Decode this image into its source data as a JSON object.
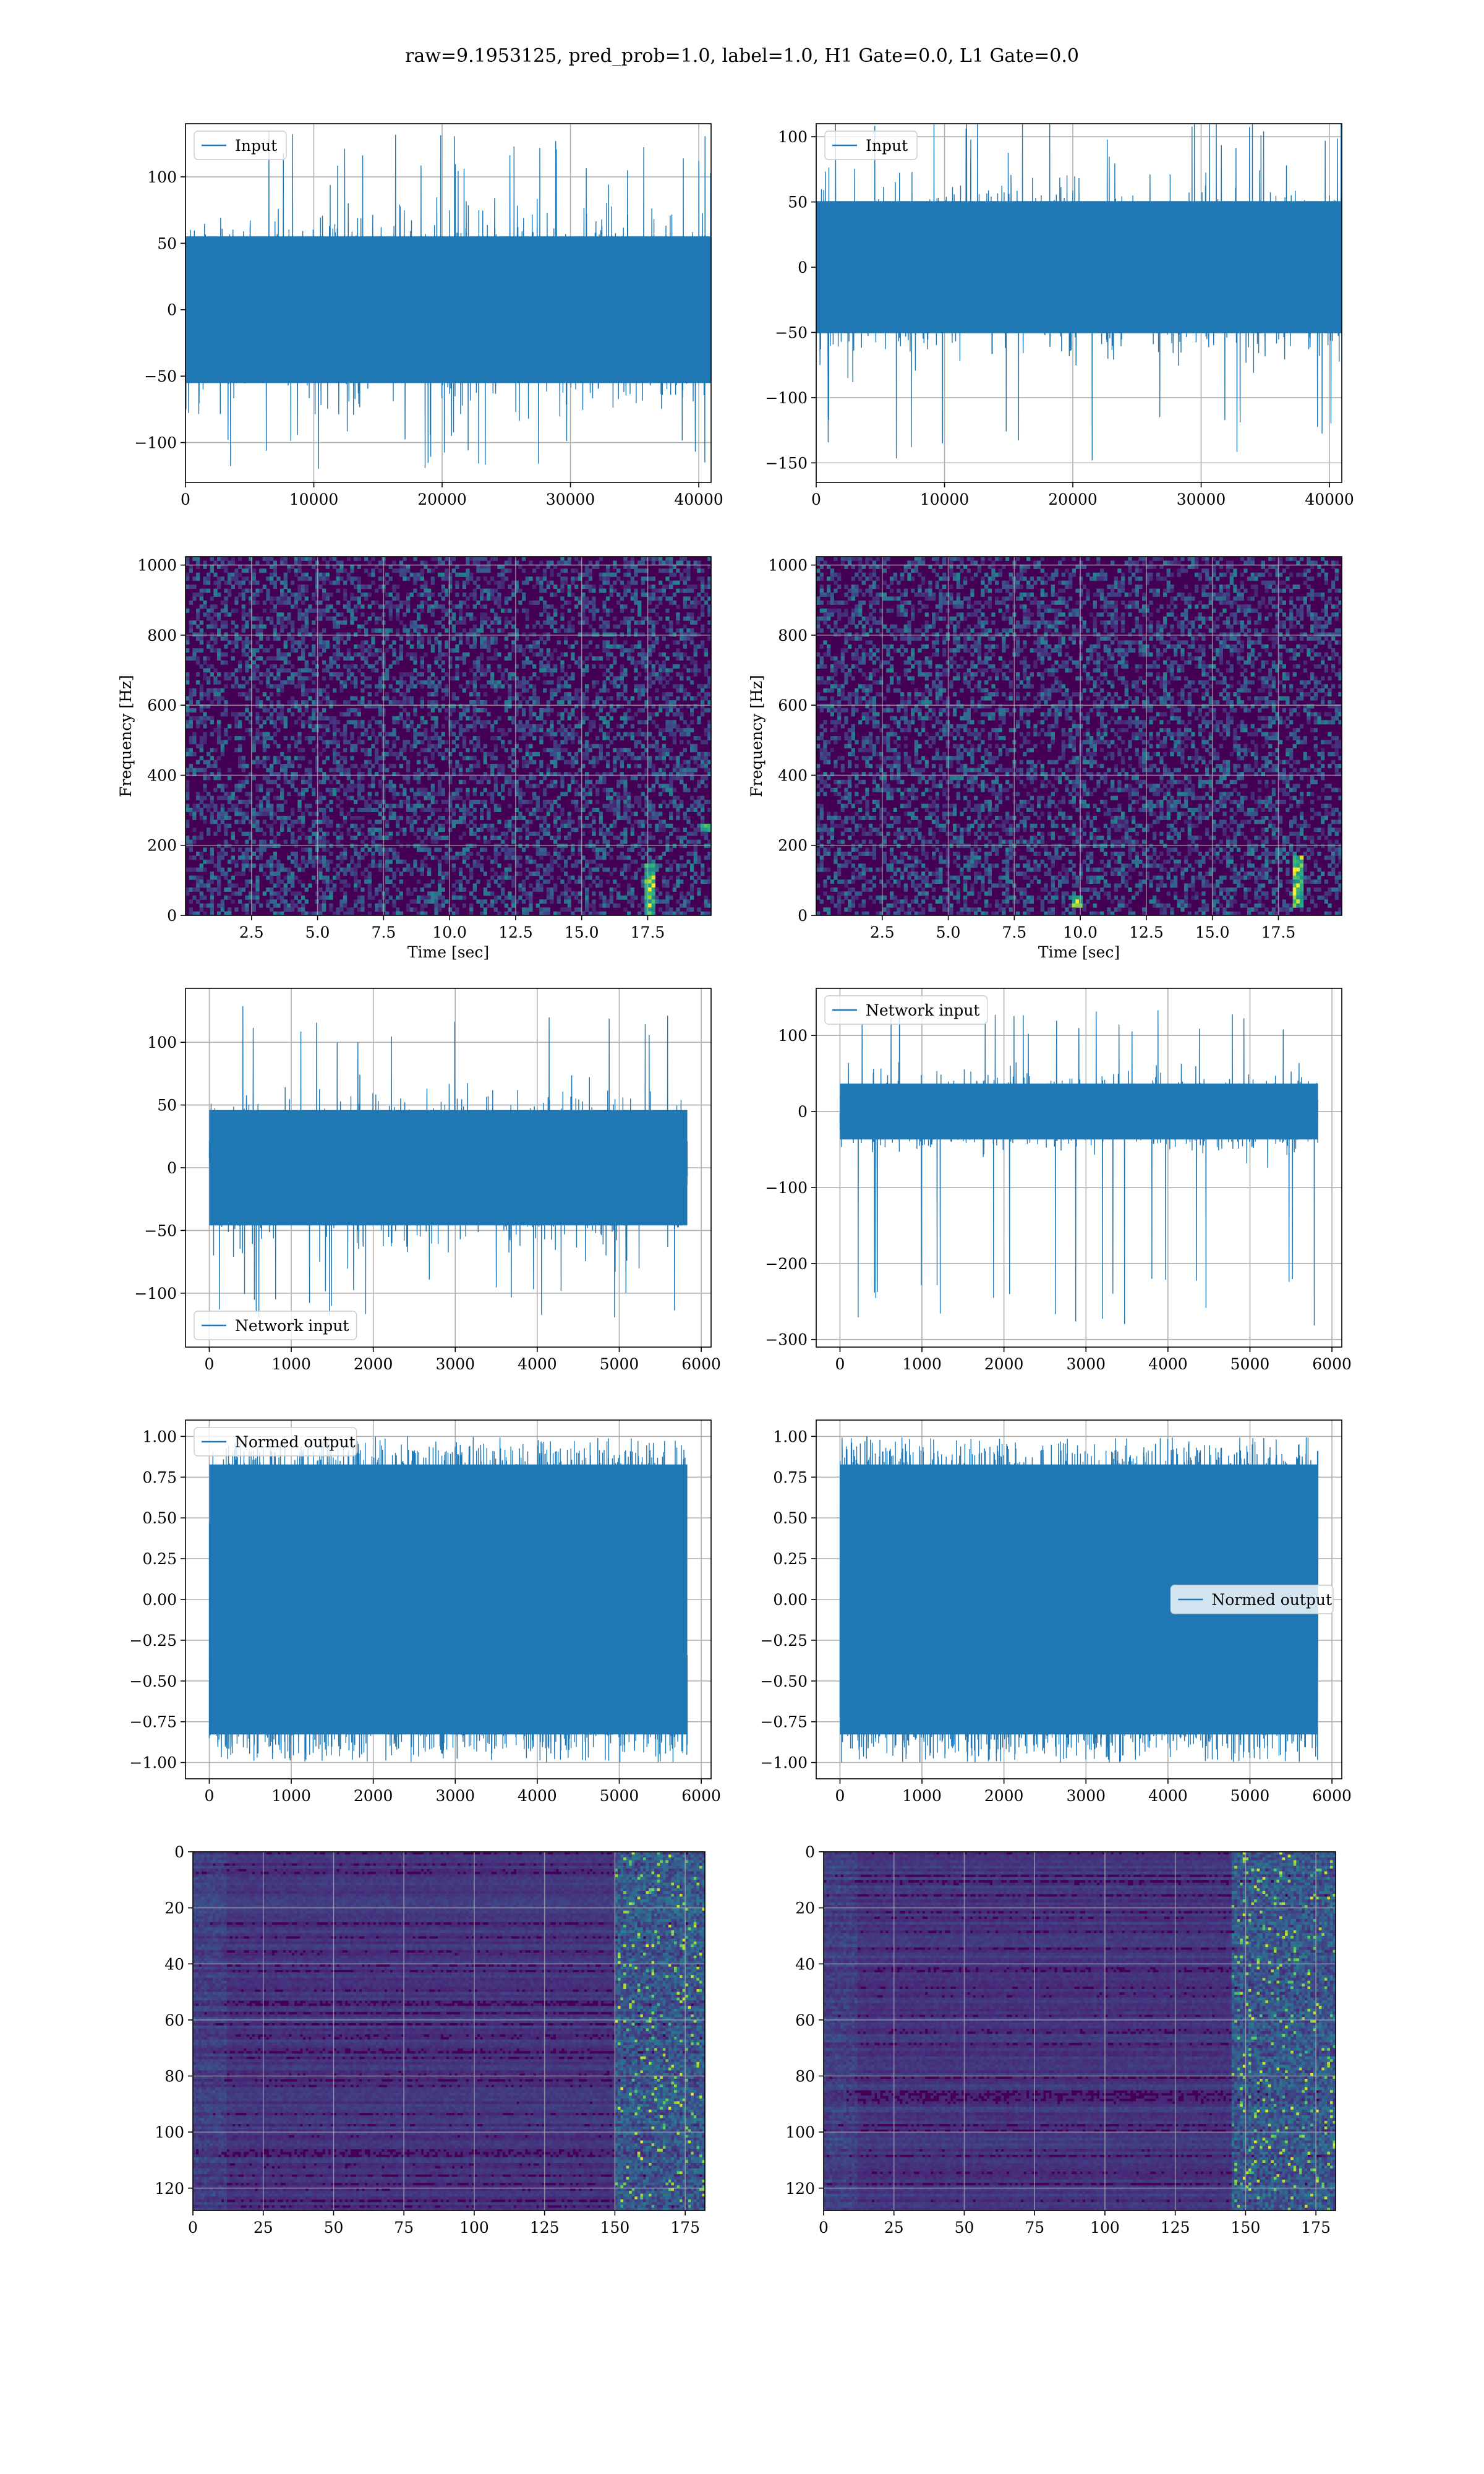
{
  "title": "raw=9.1953125, pred_prob=1.0, label=1.0, H1 Gate=0.0, L1 Gate=0.0",
  "colors": {
    "line": "#1f77b4",
    "axes": "#000000",
    "grid": "#b0b0b0",
    "viridis_low": "#440154"
  },
  "chart_data": [
    {
      "id": "h1-input",
      "type": "line",
      "series": [
        {
          "name": "Input"
        }
      ],
      "x": [
        0,
        40960
      ],
      "band_approx": [
        -60,
        60
      ],
      "peak_range_approx": [
        -120,
        135
      ],
      "xlim": [
        0,
        40960
      ],
      "ylim": [
        -130,
        140
      ],
      "xticks": [
        0,
        10000,
        20000,
        30000,
        40000
      ],
      "xtick_labels": [
        "0",
        "10000",
        "20000",
        "30000",
        "40000"
      ],
      "yticks": [
        -100,
        -50,
        0,
        50,
        100
      ],
      "ytick_labels": [
        "−100",
        "−50",
        "0",
        "50",
        "100"
      ],
      "legend": "upper left",
      "xlabel": "",
      "ylabel": "",
      "grid": true
    },
    {
      "id": "l1-input",
      "type": "line",
      "series": [
        {
          "name": "Input"
        }
      ],
      "x": [
        0,
        40960
      ],
      "band_approx": [
        -55,
        55
      ],
      "peak_range_approx": [
        -150,
        130
      ],
      "xlim": [
        0,
        40960
      ],
      "ylim": [
        -165,
        110
      ],
      "xticks": [
        0,
        10000,
        20000,
        30000,
        40000
      ],
      "xtick_labels": [
        "0",
        "10000",
        "20000",
        "30000",
        "40000"
      ],
      "yticks": [
        -150,
        -100,
        -50,
        0,
        50,
        100
      ],
      "ytick_labels": [
        "−150",
        "−100",
        "−50",
        "0",
        "50",
        "100"
      ],
      "legend": "upper left",
      "xlabel": "",
      "ylabel": "",
      "grid": true
    },
    {
      "id": "h1-spectrogram",
      "type": "heatmap",
      "colormap": "viridis",
      "xlim": [
        0,
        19.9
      ],
      "ylim": [
        0,
        1024
      ],
      "xticks": [
        2.5,
        5.0,
        7.5,
        10.0,
        12.5,
        15.0,
        17.5
      ],
      "xtick_labels": [
        "2.5",
        "5.0",
        "7.5",
        "10.0",
        "12.5",
        "15.0",
        "17.5"
      ],
      "yticks": [
        0,
        200,
        400,
        600,
        800,
        1000
      ],
      "ytick_labels": [
        "0",
        "200",
        "400",
        "600",
        "800",
        "1000"
      ],
      "xlabel": "Time [sec]",
      "ylabel": "Frequency [Hz]",
      "grid": true,
      "hotspots": [
        {
          "t": 17.6,
          "f": [
            0,
            150
          ]
        },
        {
          "t": 19.7,
          "f": [
            240,
            260
          ]
        }
      ]
    },
    {
      "id": "l1-spectrogram",
      "type": "heatmap",
      "colormap": "viridis",
      "xlim": [
        0,
        19.9
      ],
      "ylim": [
        0,
        1024
      ],
      "xticks": [
        2.5,
        5.0,
        7.5,
        10.0,
        12.5,
        15.0,
        17.5
      ],
      "xtick_labels": [
        "2.5",
        "5.0",
        "7.5",
        "10.0",
        "12.5",
        "15.0",
        "17.5"
      ],
      "yticks": [
        0,
        200,
        400,
        600,
        800,
        1000
      ],
      "ytick_labels": [
        "0",
        "200",
        "400",
        "600",
        "800",
        "1000"
      ],
      "xlabel": "Time [sec]",
      "ylabel": "Frequency [Hz]",
      "grid": true,
      "hotspots": [
        {
          "t": 18.2,
          "f": [
            20,
            170
          ]
        },
        {
          "t": 9.9,
          "f": [
            20,
            60
          ]
        }
      ]
    },
    {
      "id": "h1-network-input",
      "type": "line",
      "series": [
        {
          "name": "Network input"
        }
      ],
      "x": [
        0,
        5830
      ],
      "band_approx": [
        -50,
        50
      ],
      "peak_range_approx": [
        -125,
        130
      ],
      "xlim": [
        -290,
        6120
      ],
      "ylim": [
        -143,
        143
      ],
      "xticks": [
        0,
        1000,
        2000,
        3000,
        4000,
        5000,
        6000
      ],
      "xtick_labels": [
        "0",
        "1000",
        "2000",
        "3000",
        "4000",
        "5000",
        "6000"
      ],
      "yticks": [
        -100,
        -50,
        0,
        50,
        100
      ],
      "ytick_labels": [
        "−100",
        "−50",
        "0",
        "50",
        "100"
      ],
      "legend": "lower left",
      "xlabel": "",
      "ylabel": "",
      "grid": true
    },
    {
      "id": "l1-network-input",
      "type": "line",
      "series": [
        {
          "name": "Network input"
        }
      ],
      "x": [
        0,
        5830
      ],
      "band_approx": [
        -40,
        40
      ],
      "peak_range_approx": [
        -285,
        135
      ],
      "xlim": [
        -290,
        6120
      ],
      "ylim": [
        -310,
        162
      ],
      "xticks": [
        0,
        1000,
        2000,
        3000,
        4000,
        5000,
        6000
      ],
      "xtick_labels": [
        "0",
        "1000",
        "2000",
        "3000",
        "4000",
        "5000",
        "6000"
      ],
      "yticks": [
        -300,
        -200,
        -100,
        0,
        100
      ],
      "ytick_labels": [
        "−300",
        "−200",
        "−100",
        "0",
        "100"
      ],
      "legend": "upper left",
      "xlabel": "",
      "ylabel": "",
      "grid": true
    },
    {
      "id": "h1-normed-output",
      "type": "line",
      "series": [
        {
          "name": "Normed output"
        }
      ],
      "x": [
        0,
        5830
      ],
      "band_approx": [
        -0.9,
        0.9
      ],
      "peak_range_approx": [
        -1.0,
        1.0
      ],
      "xlim": [
        -290,
        6120
      ],
      "ylim": [
        -1.1,
        1.1
      ],
      "xticks": [
        0,
        1000,
        2000,
        3000,
        4000,
        5000,
        6000
      ],
      "xtick_labels": [
        "0",
        "1000",
        "2000",
        "3000",
        "4000",
        "5000",
        "6000"
      ],
      "yticks": [
        -1.0,
        -0.75,
        -0.5,
        -0.25,
        0.0,
        0.25,
        0.5,
        0.75,
        1.0
      ],
      "ytick_labels": [
        "−1.00",
        "−0.75",
        "−0.50",
        "−0.25",
        "0.00",
        "0.25",
        "0.50",
        "0.75",
        "1.00"
      ],
      "legend": "upper left",
      "xlabel": "",
      "ylabel": "",
      "grid": true
    },
    {
      "id": "l1-normed-output",
      "type": "line",
      "series": [
        {
          "name": "Normed output"
        }
      ],
      "x": [
        0,
        5830
      ],
      "band_approx": [
        -0.9,
        0.9
      ],
      "peak_range_approx": [
        -1.0,
        1.0
      ],
      "xlim": [
        -290,
        6120
      ],
      "ylim": [
        -1.1,
        1.1
      ],
      "xticks": [
        0,
        1000,
        2000,
        3000,
        4000,
        5000,
        6000
      ],
      "xtick_labels": [
        "0",
        "1000",
        "2000",
        "3000",
        "4000",
        "5000",
        "6000"
      ],
      "yticks": [
        -1.0,
        -0.75,
        -0.5,
        -0.25,
        0.0,
        0.25,
        0.5,
        0.75,
        1.0
      ],
      "ytick_labels": [
        "−1.00",
        "−0.75",
        "−0.50",
        "−0.25",
        "0.00",
        "0.25",
        "0.50",
        "0.75",
        "1.00"
      ],
      "legend": "center right",
      "xlabel": "",
      "ylabel": "",
      "grid": true
    },
    {
      "id": "h1-activation-map",
      "type": "heatmap",
      "colormap": "viridis",
      "xlim": [
        0,
        182
      ],
      "ylim": [
        128,
        0
      ],
      "xticks": [
        0,
        25,
        50,
        75,
        100,
        125,
        150,
        175
      ],
      "xtick_labels": [
        "0",
        "25",
        "50",
        "75",
        "100",
        "125",
        "150",
        "175"
      ],
      "yticks": [
        0,
        20,
        40,
        60,
        80,
        100,
        120
      ],
      "ytick_labels": [
        "0",
        "20",
        "40",
        "60",
        "80",
        "100",
        "120"
      ],
      "xlabel": "",
      "ylabel": "",
      "grid": true,
      "active_columns": [
        150,
        182
      ]
    },
    {
      "id": "l1-activation-map",
      "type": "heatmap",
      "colormap": "viridis",
      "xlim": [
        0,
        182
      ],
      "ylim": [
        128,
        0
      ],
      "xticks": [
        0,
        25,
        50,
        75,
        100,
        125,
        150,
        175
      ],
      "xtick_labels": [
        "0",
        "25",
        "50",
        "75",
        "100",
        "125",
        "150",
        "175"
      ],
      "yticks": [
        0,
        20,
        40,
        60,
        80,
        100,
        120
      ],
      "ytick_labels": [
        "0",
        "20",
        "40",
        "60",
        "80",
        "100",
        "120"
      ],
      "xlabel": "",
      "ylabel": "",
      "grid": true,
      "active_columns": [
        145,
        182
      ]
    }
  ]
}
